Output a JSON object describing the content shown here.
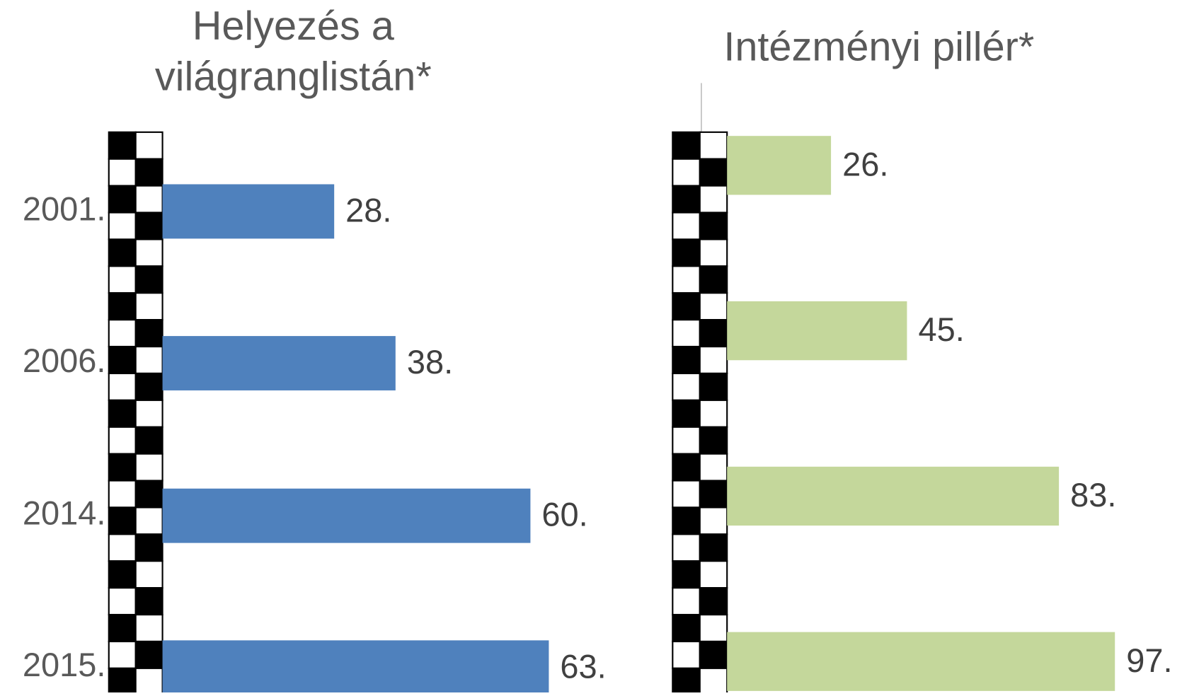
{
  "chart_data": [
    {
      "type": "bar",
      "orientation": "horizontal",
      "title": [
        "Helyezés a",
        "világranglistán*"
      ],
      "categories": [
        "2001.",
        "2006.",
        "2014.",
        "2015."
      ],
      "values": [
        28,
        38,
        60,
        63
      ],
      "value_labels": [
        "28.",
        "38.",
        "60.",
        "63."
      ],
      "color": "#4f81bd",
      "xlim": [
        0,
        70
      ]
    },
    {
      "type": "bar",
      "orientation": "horizontal",
      "title": [
        "Intézményi pillér*"
      ],
      "categories": [
        null,
        null,
        null,
        null
      ],
      "values": [
        26,
        45,
        83,
        97
      ],
      "value_labels": [
        "26.",
        "45.",
        "83.",
        "97."
      ],
      "color": "#c4d79b",
      "xlim": [
        0,
        110
      ]
    }
  ]
}
